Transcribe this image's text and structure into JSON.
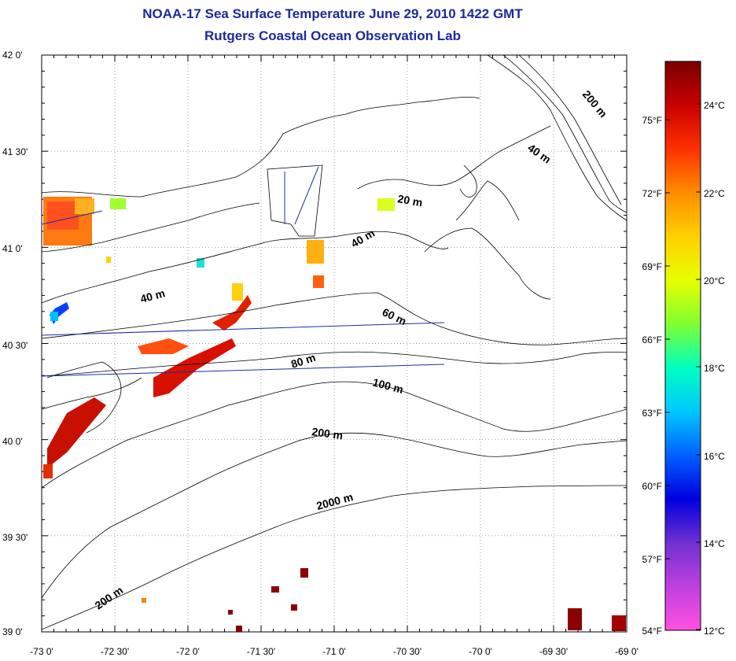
{
  "title": "NOAA-17 Sea Surface Temperature June 29, 2010 1422 GMT",
  "subtitle": "Rutgers Coastal Ocean Observation Lab",
  "axes": {
    "lat_labels": [
      "42 0'",
      "41 30'",
      "41 0'",
      "40 30'",
      "40 0'",
      "39 30'",
      "39 0'"
    ],
    "lon_labels": [
      "-73 0'",
      "-72 30'",
      "-72 0'",
      "-71 30'",
      "-71 0'",
      "-70 30'",
      "-70 0'",
      "-69 30'",
      "-69 0'"
    ],
    "lat_range": [
      39.0,
      42.0
    ],
    "lon_range": [
      -73.0,
      -69.0
    ],
    "grid": "dotted"
  },
  "colorbar": {
    "f_labels": [
      "75°F",
      "72°F",
      "69°F",
      "66°F",
      "63°F",
      "60°F",
      "57°F",
      "54°F"
    ],
    "c_labels": [
      "24°C",
      "22°C",
      "20°C",
      "18°C",
      "16°C",
      "14°C",
      "12°C"
    ],
    "colors": [
      "#7a0000",
      "#c80000",
      "#ff3000",
      "#ff8c00",
      "#ffd000",
      "#e8ff00",
      "#80ff30",
      "#00ffc0",
      "#00c8ff",
      "#0060ff",
      "#0000e0",
      "#7030d0",
      "#c040e0",
      "#ff50e0"
    ]
  },
  "isobaths": {
    "labels": [
      "200 m",
      "40 m",
      "20 m",
      "40 m",
      "40 m",
      "60 m",
      "80 m",
      "100 m",
      "200 m",
      "2000 m",
      "200 m"
    ]
  },
  "colors": {
    "title": "#1b2a9c",
    "coast": "#000000",
    "transect": "#1a2fa0",
    "grid": "#777777"
  }
}
